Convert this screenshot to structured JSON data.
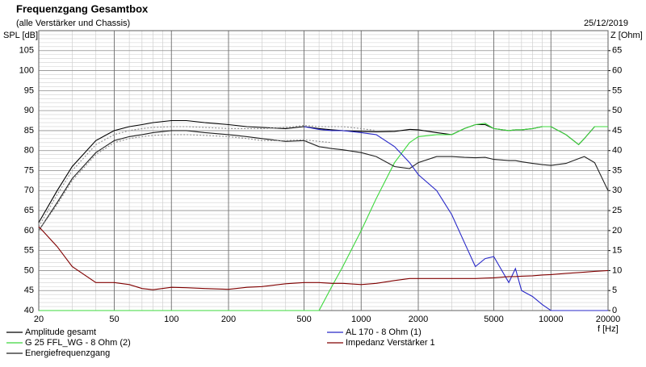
{
  "chart_data": {
    "type": "line",
    "title": "Frequenzgang Gesamtbox",
    "subtitle": "(alle Verstärker und Chassis)",
    "date": "25/12/2019",
    "y_label": "SPL [dB]",
    "y2_label": "Z [Ohm]",
    "x_label": "f [Hz]",
    "log_x": true,
    "grid": true,
    "minor_grid": true,
    "legend": "bottom",
    "x": [
      20,
      25,
      30,
      40,
      50,
      60,
      70,
      80,
      100,
      120,
      150,
      200,
      250,
      300,
      400,
      500,
      600,
      700,
      800,
      1000,
      1200,
      1500,
      1800,
      2000,
      2500,
      3000,
      3500,
      4000,
      4500,
      5000,
      6000,
      6500,
      7000,
      8000,
      9000,
      10000,
      12000,
      14000,
      15000,
      17000,
      20000
    ],
    "xlim": [
      20,
      20000
    ],
    "xticks": [
      20,
      50,
      100,
      200,
      500,
      1000,
      2000,
      5000,
      10000,
      20000
    ],
    "ylim": [
      40,
      110
    ],
    "yticks": [
      40,
      45,
      50,
      55,
      60,
      65,
      70,
      75,
      80,
      85,
      90,
      95,
      100,
      105
    ],
    "y2lim": [
      0,
      70
    ],
    "y2ticks": [
      0,
      5,
      10,
      15,
      20,
      25,
      30,
      35,
      40,
      45,
      50,
      55,
      60,
      65
    ],
    "series": [
      {
        "name": "Amplitude gesamt",
        "color": "#000000",
        "values": [
          62,
          70,
          76,
          82.5,
          85,
          86,
          86.5,
          87,
          87.5,
          87.5,
          87,
          86.5,
          86,
          85.8,
          85.5,
          86,
          85.5,
          85.2,
          85,
          84.8,
          84.7,
          84.8,
          85.3,
          85.2,
          84.5,
          84,
          85.5,
          86.5,
          86.5,
          85.5,
          85,
          85.2,
          85.2,
          85.5,
          86,
          86,
          84,
          81.5,
          83,
          86,
          86
        ]
      },
      {
        "name": "G 25 FFL_WG - 8 Ohm (2)",
        "color": "#3cd83c",
        "values": [
          40,
          40,
          40,
          40,
          40,
          40,
          40,
          40,
          40,
          40,
          40,
          40,
          40,
          40,
          40,
          40,
          40,
          46,
          51,
          60,
          68,
          77,
          82,
          83.5,
          84,
          84,
          85.5,
          86.5,
          86.8,
          85.5,
          85,
          85.2,
          85.2,
          85.5,
          86,
          86,
          84,
          81.5,
          83,
          86,
          86
        ]
      },
      {
        "name": "Energiefrequenzgang",
        "color": "#202020",
        "values": [
          60,
          67,
          73,
          79.5,
          82.5,
          83.5,
          84,
          84.5,
          85,
          85,
          84.5,
          84,
          83.5,
          83,
          82.3,
          82.5,
          81,
          80.5,
          80.2,
          79.5,
          78.5,
          76,
          75.5,
          77,
          78.5,
          78.5,
          78.3,
          78.2,
          78.3,
          77.8,
          77.5,
          77.5,
          77.2,
          76.8,
          76.5,
          76.3,
          76.8,
          78,
          78.5,
          77,
          70
        ]
      },
      {
        "name": "AL 170 - 8 Ohm (1)",
        "color": "#2828c8",
        "values": [
          null,
          null,
          null,
          null,
          null,
          null,
          null,
          null,
          null,
          null,
          null,
          null,
          null,
          null,
          null,
          86,
          85.3,
          85,
          85,
          84.5,
          84,
          81,
          77,
          74,
          70,
          64,
          57,
          51,
          53,
          53.5,
          47,
          50.5,
          45,
          43.5,
          41.5,
          40,
          40,
          40,
          40,
          40,
          40
        ]
      },
      {
        "name": "Impedanz Verstärker 1",
        "color": "#800000",
        "axis": "y2",
        "values": [
          21,
          16,
          11,
          7,
          7,
          6.5,
          5.5,
          5.2,
          5.8,
          5.7,
          5.5,
          5.3,
          5.8,
          6,
          6.7,
          7,
          7,
          6.8,
          6.8,
          6.5,
          6.8,
          7.5,
          8,
          8,
          8,
          8,
          8,
          8,
          8.1,
          8.2,
          8.5,
          8.5,
          8.6,
          8.7,
          8.9,
          9,
          9.3,
          9.5,
          9.6,
          9.8,
          10
        ]
      },
      {
        "color": "#909090",
        "style": "dotted",
        "values": [
          61,
          69,
          75,
          81.5,
          84,
          85,
          85.5,
          85.8,
          86,
          86,
          85.8,
          85.5,
          85.5,
          85.5,
          85.8,
          86.3,
          86,
          86,
          86,
          85.5,
          85,
          null,
          null,
          null,
          null,
          null,
          null,
          null,
          null,
          null,
          null,
          null,
          null,
          null,
          null,
          null,
          null,
          null,
          null,
          null,
          null
        ]
      },
      {
        "color": "#909090",
        "style": "dotted",
        "values": [
          60,
          66.5,
          72.5,
          79,
          82,
          83,
          83.5,
          83.8,
          84,
          84,
          83.8,
          83.5,
          83,
          82.5,
          82.5,
          82.7,
          82.3,
          82,
          null,
          null,
          null,
          null,
          null,
          null,
          null,
          null,
          null,
          null,
          null,
          null,
          null,
          null,
          null,
          null,
          null,
          null,
          null,
          null,
          null,
          null,
          null
        ]
      }
    ]
  }
}
